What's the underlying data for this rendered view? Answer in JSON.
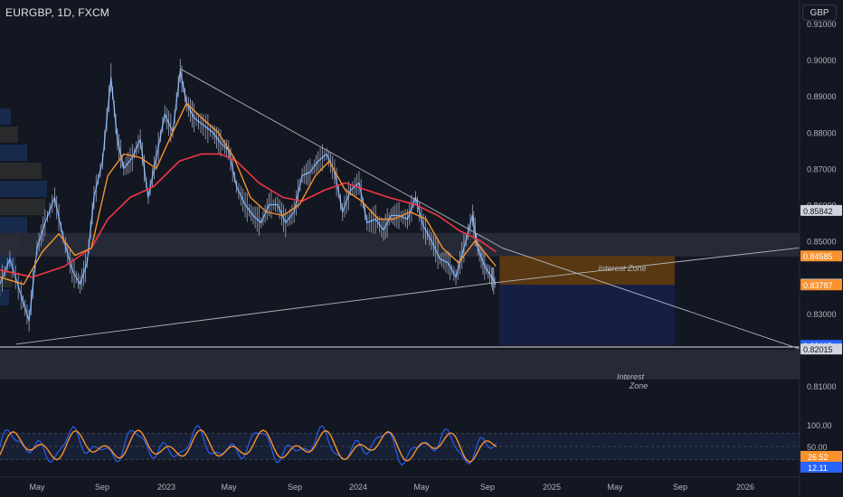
{
  "header": {
    "symbol": "EURGBP, 1D, FXCM",
    "currency": "GBP"
  },
  "colors": {
    "background": "#131722",
    "price": "#5b9cf6",
    "ema_fast": "#f7922e",
    "ema_slow": "#f23645",
    "zone": "#2a2e39",
    "orange_box": "#5c3a12",
    "blue_box": "#162046",
    "stoch_k": "#2962ff",
    "stoch_d": "#f7922e"
  },
  "annotations": {
    "interest_zone_top": "Interest Zone",
    "interest_zone_bottom_1": "Interest",
    "interest_zone_bottom_2": "Zone"
  },
  "chart_data": [
    {
      "type": "line",
      "title": "EURGBP, 1D, FXCM",
      "xlabel": "",
      "ylabel": "",
      "ylim": [
        0.8025,
        0.9165
      ],
      "x_ticks": [
        "May",
        "Sep",
        "2023",
        "May",
        "Sep",
        "2024",
        "May",
        "Sep",
        "2025",
        "May",
        "Sep",
        "2026"
      ],
      "y_ticks": [
        0.91,
        0.9,
        0.89,
        0.88,
        0.87,
        0.86,
        0.85,
        0.83,
        0.81
      ],
      "price_labels": [
        {
          "text": "0.85842",
          "value": 0.85842,
          "style": "neutral"
        },
        {
          "text": "0.84585",
          "value": 0.84585,
          "style": "orange"
        },
        {
          "text": "0.83804",
          "value": 0.83804,
          "style": "neutral"
        },
        {
          "text": "0.83787",
          "value": 0.83787,
          "style": "orange"
        },
        {
          "text": "0.82115",
          "value": 0.82115,
          "style": "blue"
        },
        {
          "text": "0.82015",
          "value": 0.82015,
          "style": "neutral"
        }
      ],
      "series": [
        {
          "name": "",
          "role": "price",
          "values": [
            [
              "2022-03-01",
              0.838
            ],
            [
              "2022-03-20",
              0.845
            ],
            [
              "2022-04-10",
              0.835
            ],
            [
              "2022-04-25",
              0.828
            ],
            [
              "2022-05-10",
              0.848
            ],
            [
              "2022-05-25",
              0.855
            ],
            [
              "2022-06-12",
              0.862
            ],
            [
              "2022-06-28",
              0.851
            ],
            [
              "2022-07-15",
              0.842
            ],
            [
              "2022-07-30",
              0.838
            ],
            [
              "2022-08-12",
              0.844
            ],
            [
              "2022-08-25",
              0.862
            ],
            [
              "2022-09-10",
              0.872
            ],
            [
              "2022-09-26",
              0.895
            ],
            [
              "2022-10-08",
              0.878
            ],
            [
              "2022-10-20",
              0.87
            ],
            [
              "2022-11-05",
              0.873
            ],
            [
              "2022-11-20",
              0.878
            ],
            [
              "2022-12-05",
              0.862
            ],
            [
              "2022-12-20",
              0.873
            ],
            [
              "2023-01-05",
              0.885
            ],
            [
              "2023-01-20",
              0.88
            ],
            [
              "2023-02-03",
              0.897
            ],
            [
              "2023-02-15",
              0.888
            ],
            [
              "2023-03-01",
              0.884
            ],
            [
              "2023-03-18",
              0.882
            ],
            [
              "2023-04-05",
              0.88
            ],
            [
              "2023-04-20",
              0.877
            ],
            [
              "2023-05-05",
              0.875
            ],
            [
              "2023-05-20",
              0.865
            ],
            [
              "2023-06-05",
              0.86
            ],
            [
              "2023-06-20",
              0.857
            ],
            [
              "2023-07-05",
              0.855
            ],
            [
              "2023-07-20",
              0.86
            ],
            [
              "2023-08-05",
              0.86
            ],
            [
              "2023-08-20",
              0.855
            ],
            [
              "2023-09-05",
              0.858
            ],
            [
              "2023-09-20",
              0.868
            ],
            [
              "2023-10-05",
              0.869
            ],
            [
              "2023-10-20",
              0.872
            ],
            [
              "2023-11-05",
              0.874
            ],
            [
              "2023-11-20",
              0.869
            ],
            [
              "2023-12-05",
              0.858
            ],
            [
              "2023-12-20",
              0.864
            ],
            [
              "2024-01-05",
              0.866
            ],
            [
              "2024-01-20",
              0.855
            ],
            [
              "2024-02-05",
              0.856
            ],
            [
              "2024-02-20",
              0.853
            ],
            [
              "2024-03-05",
              0.857
            ],
            [
              "2024-03-20",
              0.857
            ],
            [
              "2024-04-05",
              0.856
            ],
            [
              "2024-04-20",
              0.862
            ],
            [
              "2024-05-05",
              0.854
            ],
            [
              "2024-05-20",
              0.85
            ],
            [
              "2024-06-05",
              0.845
            ],
            [
              "2024-06-20",
              0.844
            ],
            [
              "2024-07-05",
              0.84
            ],
            [
              "2024-07-20",
              0.848
            ],
            [
              "2024-08-05",
              0.857
            ],
            [
              "2024-08-15",
              0.848
            ],
            [
              "2024-08-28",
              0.843
            ],
            [
              "2024-09-10",
              0.84
            ],
            [
              "2024-09-18",
              0.838
            ]
          ]
        },
        {
          "name": "",
          "role": "ema_fast",
          "values": [
            [
              "2022-03-01",
              0.84
            ],
            [
              "2022-04-15",
              0.838
            ],
            [
              "2022-05-20",
              0.847
            ],
            [
              "2022-06-20",
              0.852
            ],
            [
              "2022-07-20",
              0.846
            ],
            [
              "2022-08-20",
              0.848
            ],
            [
              "2022-09-20",
              0.868
            ],
            [
              "2022-10-20",
              0.874
            ],
            [
              "2022-11-20",
              0.873
            ],
            [
              "2022-12-20",
              0.87
            ],
            [
              "2023-01-20",
              0.88
            ],
            [
              "2023-02-15",
              0.888
            ],
            [
              "2023-03-15",
              0.884
            ],
            [
              "2023-04-15",
              0.88
            ],
            [
              "2023-05-15",
              0.873
            ],
            [
              "2023-06-15",
              0.862
            ],
            [
              "2023-07-15",
              0.858
            ],
            [
              "2023-08-15",
              0.857
            ],
            [
              "2023-09-15",
              0.86
            ],
            [
              "2023-10-15",
              0.868
            ],
            [
              "2023-11-10",
              0.872
            ],
            [
              "2023-12-10",
              0.864
            ],
            [
              "2024-01-10",
              0.861
            ],
            [
              "2024-02-10",
              0.856
            ],
            [
              "2024-03-10",
              0.856
            ],
            [
              "2024-04-10",
              0.858
            ],
            [
              "2024-05-10",
              0.856
            ],
            [
              "2024-06-10",
              0.848
            ],
            [
              "2024-07-10",
              0.844
            ],
            [
              "2024-08-10",
              0.85
            ],
            [
              "2024-09-18",
              0.843
            ]
          ]
        },
        {
          "name": "",
          "role": "ema_slow",
          "values": [
            [
              "2022-03-01",
              0.842
            ],
            [
              "2022-05-01",
              0.84
            ],
            [
              "2022-07-01",
              0.843
            ],
            [
              "2022-08-20",
              0.848
            ],
            [
              "2022-09-20",
              0.856
            ],
            [
              "2022-11-01",
              0.862
            ],
            [
              "2022-12-15",
              0.865
            ],
            [
              "2023-02-01",
              0.872
            ],
            [
              "2023-03-15",
              0.874
            ],
            [
              "2023-04-20",
              0.874
            ],
            [
              "2023-05-20",
              0.872
            ],
            [
              "2023-07-01",
              0.866
            ],
            [
              "2023-08-15",
              0.862
            ],
            [
              "2023-09-20",
              0.861
            ],
            [
              "2023-11-01",
              0.864
            ],
            [
              "2023-12-10",
              0.866
            ],
            [
              "2024-01-20",
              0.864
            ],
            [
              "2024-03-01",
              0.862
            ],
            [
              "2024-04-20",
              0.86
            ],
            [
              "2024-06-01",
              0.857
            ],
            [
              "2024-07-10",
              0.853
            ],
            [
              "2024-08-20",
              0.85
            ],
            [
              "2024-09-18",
              0.847
            ]
          ]
        },
        {
          "name": "",
          "role": "upper_trendline",
          "values": [
            [
              "2023-02-03",
              0.8975
            ],
            [
              "2024-10-01",
              0.848
            ],
            [
              "2026-11-01",
              0.81
            ]
          ]
        },
        {
          "name": "",
          "role": "lower_trendline",
          "values": [
            [
              "2022-04-01",
              0.8215
            ],
            [
              "2024-09-18",
              0.8385
            ],
            [
              "2026-11-01",
              0.8515
            ]
          ]
        },
        {
          "name": "",
          "role": "stochastic",
          "ylim": [
            0,
            100
          ],
          "y_ticks": [
            100,
            50
          ],
          "values_labels": [
            {
              "text": "26.52",
              "value": 26.52
            },
            {
              "text": "12.11",
              "value": 12.11
            }
          ]
        }
      ],
      "zones": [
        {
          "label": "Interest Zone",
          "range": [
            0.8457,
            0.8522
          ]
        },
        {
          "label": "Interest Zone",
          "range": [
            0.8118,
            0.82
          ]
        }
      ],
      "position_boxes": [
        {
          "kind": "risk",
          "range": [
            0.83787,
            0.84585
          ],
          "x": [
            "2024-09-25",
            "2025-08-20"
          ]
        },
        {
          "kind": "target",
          "range": [
            0.8212,
            0.83787
          ],
          "x": [
            "2024-09-25",
            "2025-08-20"
          ]
        }
      ]
    }
  ]
}
